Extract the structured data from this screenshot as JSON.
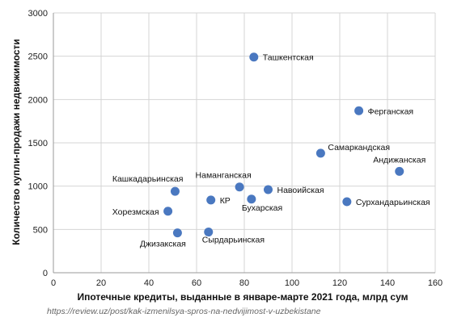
{
  "chart_data": {
    "type": "scatter",
    "title": "",
    "xlabel": "Ипотечные кредиты, выданные в январе-марте 2021 года, млрд сум",
    "ylabel": "Количество купли-продажи недвижимости",
    "xlim": [
      0,
      160
    ],
    "ylim": [
      0,
      3000
    ],
    "xticks": [
      0,
      20,
      40,
      60,
      80,
      100,
      120,
      140,
      160
    ],
    "yticks": [
      0,
      500,
      1000,
      1500,
      2000,
      2500,
      3000
    ],
    "grid": "vertical-and-horizontal",
    "marker_color": "#4a78c0",
    "points": [
      {
        "label": "Ташкентская",
        "x": 84,
        "y": 2490
      },
      {
        "label": "Ферганская",
        "x": 128,
        "y": 1870
      },
      {
        "label": "Самаркандская",
        "x": 112,
        "y": 1380
      },
      {
        "label": "Андижанская",
        "x": 145,
        "y": 1170
      },
      {
        "label": "Наманганская",
        "x": 78,
        "y": 990
      },
      {
        "label": "Навоийская",
        "x": 90,
        "y": 960
      },
      {
        "label": "Кашкадарьинская",
        "x": 51,
        "y": 940
      },
      {
        "label": "Бухарская",
        "x": 83,
        "y": 850
      },
      {
        "label": "КР",
        "x": 66,
        "y": 840
      },
      {
        "label": "Сурхандарьинская",
        "x": 123,
        "y": 820
      },
      {
        "label": "Хорезмская",
        "x": 48,
        "y": 710
      },
      {
        "label": "Джизакская",
        "x": 52,
        "y": 460
      },
      {
        "label": "Сырдарьинская",
        "x": 65,
        "y": 470
      }
    ]
  },
  "source_text": "https://review.uz/post/kak-izmenilsya-spros-na-nedvijimost-v-uzbekistane"
}
